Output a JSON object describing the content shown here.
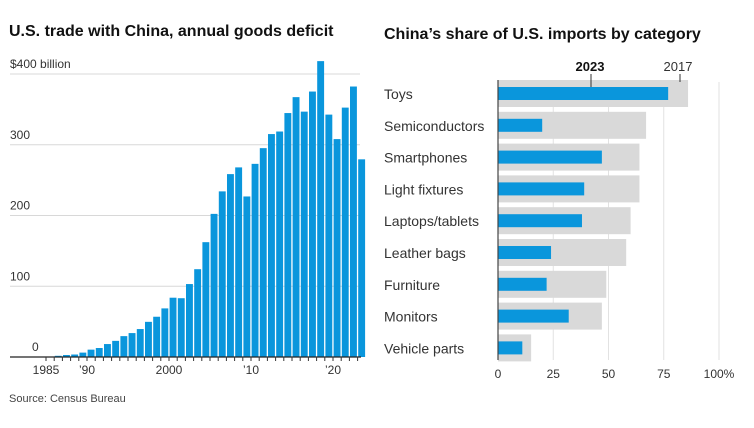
{
  "chart_data": [
    {
      "type": "bar",
      "title": "U.S. trade with China, annual goods deficit",
      "ylabel": "$400 billion",
      "ylim": [
        0,
        400
      ],
      "yticks": [
        0,
        100,
        200,
        300
      ],
      "ytop_label": "$400 billion",
      "color": "#0a96dc",
      "x": [
        1985,
        1986,
        1987,
        1988,
        1989,
        1990,
        1991,
        1992,
        1993,
        1994,
        1995,
        1996,
        1997,
        1998,
        1999,
        2000,
        2001,
        2002,
        2003,
        2004,
        2005,
        2006,
        2007,
        2008,
        2009,
        2010,
        2011,
        2012,
        2013,
        2014,
        2015,
        2016,
        2017,
        2018,
        2019,
        2020,
        2021,
        2022,
        2023
      ],
      "values": [
        0.5,
        1.7,
        2.8,
        3.5,
        6.2,
        10.4,
        12.7,
        18.3,
        22.8,
        29.5,
        33.8,
        39.5,
        49.7,
        56.9,
        68.7,
        83.8,
        83.1,
        103.1,
        124.1,
        162.3,
        202.3,
        234.1,
        258.5,
        268.0,
        226.9,
        273.0,
        295.2,
        315.1,
        318.7,
        344.8,
        367.3,
        346.8,
        375.2,
        418.2,
        342.6,
        308.0,
        352.5,
        382.3,
        279.4
      ],
      "xtick_labels": [
        {
          "year": 1985,
          "label": "1985"
        },
        {
          "year": 1990,
          "label": "’90"
        },
        {
          "year": 2000,
          "label": "2000"
        },
        {
          "year": 2010,
          "label": "’10"
        },
        {
          "year": 2020,
          "label": "’20"
        }
      ],
      "source": "Source: Census Bureau"
    },
    {
      "type": "bar",
      "orientation": "horizontal",
      "title": "China’s share of U.S. imports by category",
      "xlim": [
        0,
        100
      ],
      "xticks": [
        "0",
        "25",
        "50",
        "75",
        "100%"
      ],
      "xtick_values": [
        0,
        25,
        50,
        75,
        100
      ],
      "categories": [
        "Toys",
        "Semiconductors",
        "Smartphones",
        "Light fixtures",
        "Laptops/tablets",
        "Leather bags",
        "Furniture",
        "Monitors",
        "Vehicle parts"
      ],
      "series": [
        {
          "name": "2017",
          "color": "#d9d9d9",
          "values": [
            86,
            67,
            64,
            64,
            60,
            58,
            49,
            47,
            15
          ]
        },
        {
          "name": "2023",
          "color": "#0a96dc",
          "values": [
            77,
            20,
            47,
            39,
            38,
            24,
            22,
            32,
            11
          ]
        }
      ]
    }
  ]
}
